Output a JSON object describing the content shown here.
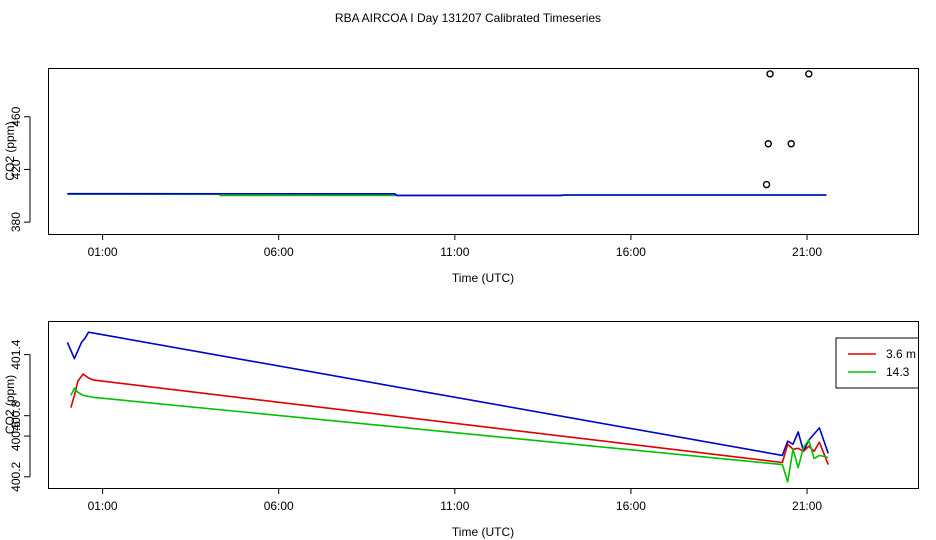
{
  "title": "RBA AIRCOA I  Day 131207  Calibrated Timeseries",
  "chart_data": [
    {
      "type": "line",
      "ylabel": "CO2 (ppm)",
      "xlabel": "Time (UTC)",
      "xlim": [
        -0.55,
        24.15
      ],
      "ylim": [
        371,
        497
      ],
      "x_ticks": [
        {
          "value": 1,
          "label": "01:00"
        },
        {
          "value": 6,
          "label": "06:00"
        },
        {
          "value": 11,
          "label": "11:00"
        },
        {
          "value": 16,
          "label": "16:00"
        },
        {
          "value": 21,
          "label": "21:00"
        }
      ],
      "y_ticks": [
        {
          "value": 380,
          "label": "380"
        },
        {
          "value": 420,
          "label": "420"
        },
        {
          "value": 460,
          "label": "460"
        }
      ],
      "series": [
        {
          "color": "#00c000",
          "x": [
            0,
            4.3,
            4.35,
            14,
            14.05,
            21.55
          ],
          "y": [
            401.2,
            401.1,
            400.3,
            400.3,
            400.5,
            400.5
          ]
        },
        {
          "color": "#0000cc",
          "x": [
            0,
            9.3,
            9.35,
            14.05,
            14.1,
            21.55
          ],
          "y": [
            401.6,
            401.5,
            400.3,
            400.3,
            400.6,
            400.6
          ]
        }
      ],
      "points": [
        {
          "x": 19.85,
          "y": 408.5
        },
        {
          "x": 19.9,
          "y": 439.5
        },
        {
          "x": 20.55,
          "y": 439.5
        },
        {
          "x": 19.95,
          "y": 492.5
        },
        {
          "x": 21.05,
          "y": 492.5
        }
      ]
    },
    {
      "type": "line",
      "ylabel": "CO2 (ppm)",
      "xlabel": "Time (UTC)",
      "xlim": [
        -0.55,
        24.15
      ],
      "ylim": [
        400.09,
        401.73
      ],
      "x_ticks": [
        {
          "value": 1,
          "label": "01:00"
        },
        {
          "value": 6,
          "label": "06:00"
        },
        {
          "value": 11,
          "label": "11:00"
        },
        {
          "value": 16,
          "label": "16:00"
        },
        {
          "value": 21,
          "label": "21:00"
        }
      ],
      "y_ticks": [
        {
          "value": 400.2,
          "label": "400.2"
        },
        {
          "value": 400.6,
          "label": "400.6"
        },
        {
          "value": 400.8,
          "label": "400.8"
        },
        {
          "value": 401.4,
          "label": "401.4"
        }
      ],
      "legend": {
        "position": "right",
        "entries": [
          {
            "label": "3.6 m",
            "color": "#dd0000"
          },
          {
            "label": "14.3",
            "color": "#00c000"
          }
        ]
      },
      "series": [
        {
          "color": "#0000cc",
          "x": [
            0,
            0.1,
            0.2,
            0.3,
            0.4,
            0.5,
            0.6,
            20.3,
            20.45,
            20.6,
            20.75,
            20.9,
            21.05,
            21.2,
            21.35,
            21.6
          ],
          "y": [
            401.52,
            401.44,
            401.36,
            401.44,
            401.52,
            401.56,
            401.62,
            400.41,
            400.55,
            400.52,
            400.64,
            400.45,
            400.56,
            400.62,
            400.68,
            400.43
          ]
        },
        {
          "color": "#dd0000",
          "x": [
            0.1,
            0.2,
            0.3,
            0.45,
            0.6,
            0.75,
            20.3,
            20.45,
            20.6,
            20.75,
            20.9,
            21.05,
            21.2,
            21.35,
            21.6
          ],
          "y": [
            400.88,
            401.0,
            401.14,
            401.21,
            401.17,
            401.15,
            400.34,
            400.52,
            400.47,
            400.48,
            400.45,
            400.5,
            400.45,
            400.54,
            400.32
          ]
        },
        {
          "color": "#00c000",
          "x": [
            0.1,
            0.2,
            0.3,
            0.45,
            0.6,
            0.75,
            20.3,
            20.45,
            20.6,
            20.75,
            20.9,
            21.05,
            21.2,
            21.35,
            21.6
          ],
          "y": [
            401.0,
            401.07,
            401.03,
            401.0,
            400.99,
            400.98,
            400.32,
            400.15,
            400.47,
            400.29,
            400.49,
            400.56,
            400.38,
            400.41,
            400.39
          ]
        }
      ]
    }
  ]
}
